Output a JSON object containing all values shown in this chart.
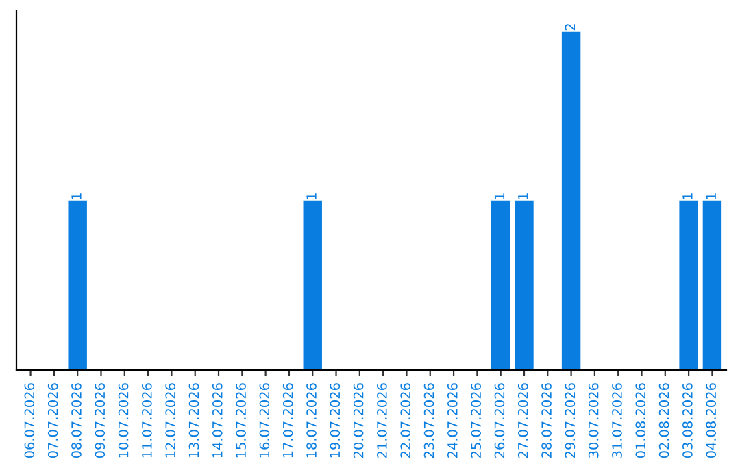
{
  "chart_data": {
    "type": "bar",
    "categories": [
      "06.07.2026",
      "07.07.2026",
      "08.07.2026",
      "09.07.2026",
      "10.07.2026",
      "11.07.2026",
      "12.07.2026",
      "13.07.2026",
      "14.07.2026",
      "15.07.2026",
      "16.07.2026",
      "17.07.2026",
      "18.07.2026",
      "19.07.2026",
      "20.07.2026",
      "21.07.2026",
      "22.07.2026",
      "23.07.2026",
      "24.07.2026",
      "25.07.2026",
      "26.07.2026",
      "27.07.2026",
      "28.07.2026",
      "29.07.2026",
      "30.07.2026",
      "31.07.2026",
      "01.08.2026",
      "02.08.2026",
      "03.08.2026",
      "04.08.2026"
    ],
    "values": [
      0,
      0,
      1,
      0,
      0,
      0,
      0,
      0,
      0,
      0,
      0,
      0,
      1,
      0,
      0,
      0,
      0,
      0,
      0,
      0,
      1,
      1,
      0,
      2,
      0,
      0,
      0,
      0,
      1,
      1
    ],
    "value_labels": [
      null,
      null,
      "1",
      null,
      null,
      null,
      null,
      null,
      null,
      null,
      null,
      null,
      "1",
      null,
      null,
      null,
      null,
      null,
      null,
      null,
      "1",
      "1",
      null,
      "2",
      null,
      null,
      null,
      null,
      "1",
      "1"
    ],
    "color": "#0a7ee0",
    "tick_labels": "x",
    "grid": false,
    "legend": false
  }
}
